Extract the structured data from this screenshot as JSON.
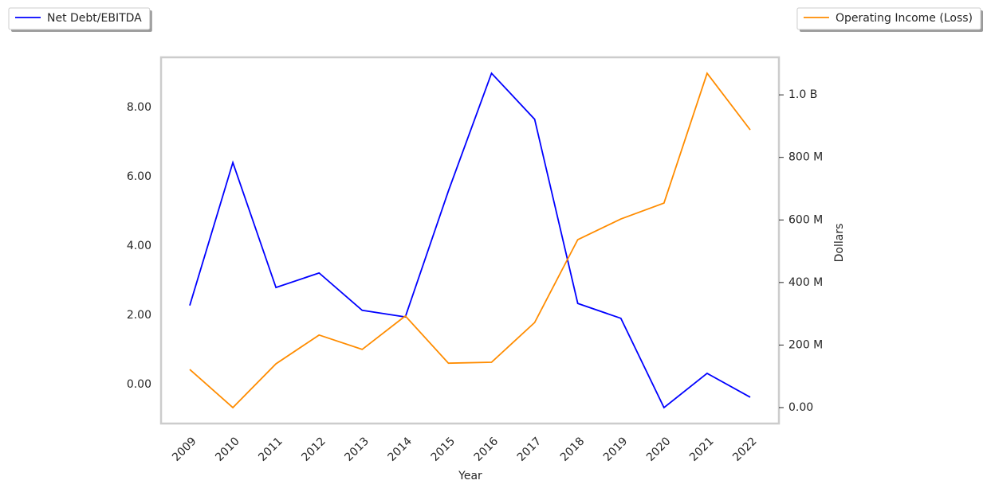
{
  "chart_data": {
    "type": "line",
    "categories": [
      "2009",
      "2010",
      "2011",
      "2012",
      "2013",
      "2014",
      "2015",
      "2016",
      "2017",
      "2018",
      "2019",
      "2020",
      "2021",
      "2022"
    ],
    "series": [
      {
        "name": "Net Debt/EBITDA",
        "color": "#0000ff",
        "legend_loc": "upper left",
        "values": [
          2.28,
          6.41,
          2.8,
          3.22,
          2.14,
          1.95,
          5.59,
          8.99,
          7.66,
          2.34,
          1.91,
          -0.67,
          0.32,
          -0.37
        ]
      },
      {
        "name": "Operating Income (Loss)",
        "color": "#ff8c00",
        "axis": "y2",
        "legend_loc": "upper right",
        "values": [
          122000000,
          0,
          140000000,
          232000000,
          186000000,
          293000000,
          142000000,
          145000000,
          272000000,
          537000000,
          603000000,
          654000000,
          1069000000,
          888000000
        ]
      }
    ],
    "ylim": [
      -1.13,
      9.45
    ],
    "yticks": [
      {
        "value": 0,
        "label": "0.00"
      },
      {
        "value": 2,
        "label": "2.00"
      },
      {
        "value": 4,
        "label": "4.00"
      },
      {
        "value": 6,
        "label": "6.00"
      },
      {
        "value": 8,
        "label": "8.00"
      }
    ],
    "y2lim": [
      -51000000,
      1120000000
    ],
    "y2ticks": [
      {
        "value": 0,
        "label": "0.00"
      },
      {
        "value": 200000000,
        "label": "200 M"
      },
      {
        "value": 400000000,
        "label": "400 M"
      },
      {
        "value": 600000000,
        "label": "600 M"
      },
      {
        "value": 800000000,
        "label": "800 M"
      },
      {
        "value": 1000000000,
        "label": "1.0 B"
      }
    ],
    "xlabel": "Year",
    "y2label": "Dollars",
    "grid": false
  }
}
